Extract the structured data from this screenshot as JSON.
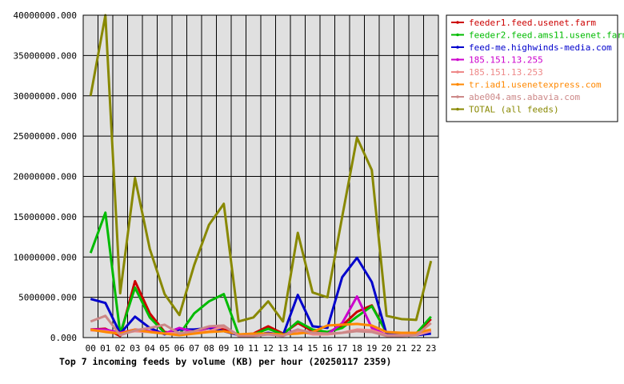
{
  "chart_data": {
    "type": "line",
    "title": "Top 7 incoming feeds by volume (KB) per hour (20250117 2359)",
    "xlabel": "",
    "ylabel": "",
    "categories": [
      "00",
      "01",
      "02",
      "03",
      "04",
      "05",
      "06",
      "07",
      "08",
      "09",
      "10",
      "11",
      "12",
      "13",
      "14",
      "15",
      "16",
      "17",
      "18",
      "19",
      "20",
      "21",
      "22",
      "23"
    ],
    "ylim": [
      0,
      40000000
    ],
    "yticks": [
      {
        "value": 0,
        "label": "0.000"
      },
      {
        "value": 5000000,
        "label": "5000000.000"
      },
      {
        "value": 10000000,
        "label": "10000000.000"
      },
      {
        "value": 15000000,
        "label": "15000000.000"
      },
      {
        "value": 20000000,
        "label": "20000000.000"
      },
      {
        "value": 25000000,
        "label": "25000000.000"
      },
      {
        "value": 30000000,
        "label": "30000000.000"
      },
      {
        "value": 35000000,
        "label": "35000000.000"
      },
      {
        "value": 40000000,
        "label": "40000000.000"
      }
    ],
    "grid": true,
    "legend_position": "right",
    "series": [
      {
        "name": "feeder1.feed.usenet.farm",
        "color": "#cc0000",
        "values": [
          1000000,
          1100000,
          200000,
          7000000,
          3000000,
          700000,
          500000,
          800000,
          1200000,
          1000000,
          300000,
          500000,
          1400000,
          500000,
          1800000,
          800000,
          600000,
          1500000,
          3200000,
          4000000,
          600000,
          400000,
          500000,
          2300000
        ]
      },
      {
        "name": "feeder2.feed.ams11.usenet.farm",
        "color": "#00bb00",
        "values": [
          10500000,
          15500000,
          500000,
          6200000,
          2500000,
          600000,
          400000,
          3000000,
          4500000,
          5400000,
          400000,
          400000,
          1100000,
          400000,
          2000000,
          1000000,
          700000,
          1200000,
          2600000,
          3900000,
          600000,
          400000,
          500000,
          2600000
        ]
      },
      {
        "name": "feed-me.highwinds-media.com",
        "color": "#0000cc",
        "values": [
          4800000,
          4300000,
          500000,
          2600000,
          1200000,
          400000,
          1000000,
          1000000,
          1200000,
          800000,
          300000,
          300000,
          600000,
          300000,
          5300000,
          1400000,
          1200000,
          7500000,
          9900000,
          6900000,
          400000,
          300000,
          300000,
          500000
        ]
      },
      {
        "name": "185.151.13.255",
        "color": "#cc00cc",
        "values": [
          1000000,
          1000000,
          600000,
          1000000,
          800000,
          500000,
          1200000,
          700000,
          1300000,
          1400000,
          300000,
          300000,
          500000,
          300000,
          1000000,
          500000,
          400000,
          1800000,
          5100000,
          1200000,
          300000,
          300000,
          300000,
          900000
        ]
      },
      {
        "name": "185.151.13.253",
        "color": "#ee8888",
        "values": [
          900000,
          800000,
          500000,
          800000,
          700000,
          500000,
          600000,
          600000,
          800000,
          1400000,
          300000,
          300000,
          400000,
          300000,
          800000,
          400000,
          400000,
          600000,
          1000000,
          900000,
          300000,
          300000,
          300000,
          800000
        ]
      },
      {
        "name": "tr.iad1.usenetexpress.com",
        "color": "#ff8800",
        "values": [
          1000000,
          700000,
          500000,
          1000000,
          700000,
          500000,
          300000,
          500000,
          700000,
          800000,
          400000,
          500000,
          500000,
          400000,
          500000,
          700000,
          1500000,
          1600000,
          1700000,
          1500000,
          700000,
          600000,
          600000,
          1000000
        ]
      },
      {
        "name": "abe004.ams.abavia.com",
        "color": "#cc8888",
        "values": [
          2000000,
          2700000,
          300000,
          900000,
          1200000,
          1600000,
          500000,
          800000,
          1400000,
          1500000,
          200000,
          200000,
          400000,
          200000,
          1000000,
          600000,
          500000,
          600000,
          800000,
          700000,
          200000,
          200000,
          300000,
          1800000
        ]
      },
      {
        "name": "TOTAL (all feeds)",
        "color": "#888800",
        "values": [
          30000000,
          40000000,
          5500000,
          19800000,
          11000000,
          5400000,
          2800000,
          9000000,
          14000000,
          16600000,
          2000000,
          2500000,
          4500000,
          2000000,
          13000000,
          5600000,
          5000000,
          15000000,
          24800000,
          20800000,
          2700000,
          2300000,
          2200000,
          9500000
        ]
      }
    ]
  }
}
